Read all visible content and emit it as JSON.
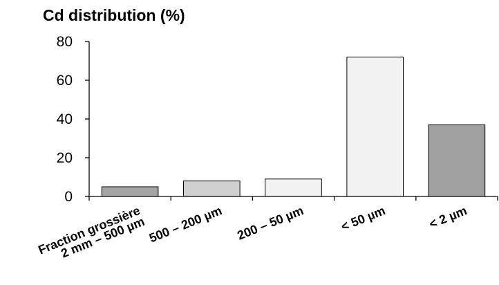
{
  "chart_data": {
    "type": "bar",
    "title": "Cd distribution (%)",
    "xlabel": "",
    "ylabel": "",
    "ylim": [
      0,
      80
    ],
    "yticks": [
      "0",
      "20",
      "40",
      "60",
      "80"
    ],
    "grid": false,
    "categories": [
      [
        "Fraction grossière",
        "2 mm – 500 µm"
      ],
      [
        "500 – 200 µm"
      ],
      [
        "200 – 50 µm"
      ],
      [
        "< 50 µm"
      ],
      [
        "< 2 µm"
      ]
    ],
    "values": [
      5,
      8,
      9,
      72,
      37
    ],
    "colors": [
      "#a6a6a6",
      "#d0d0d0",
      "#f2f2f2",
      "#f2f2f2",
      "#a0a0a0"
    ]
  }
}
